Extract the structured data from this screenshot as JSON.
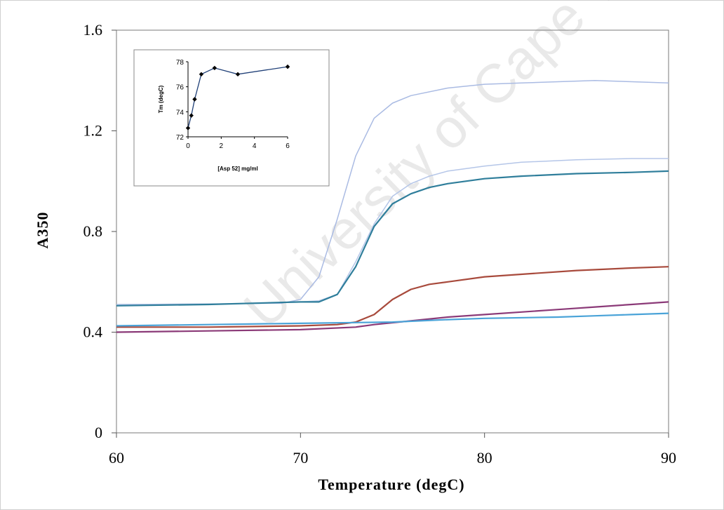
{
  "chart_data": [
    {
      "type": "line",
      "title": "",
      "xlabel": "Temperature (degC)",
      "ylabel": "A350",
      "xlim": [
        60,
        90
      ],
      "ylim": [
        0,
        1.6
      ],
      "xticks": [
        "60",
        "70",
        "80",
        "90"
      ],
      "yticks": [
        "0",
        "0.4",
        "0.8",
        "1.2",
        "1.6"
      ],
      "grid": false,
      "legend": "none",
      "series": [
        {
          "color": "#aabbe3",
          "width": 1.5,
          "points": [
            [
              60,
              0.51
            ],
            [
              65,
              0.512
            ],
            [
              69,
              0.515
            ],
            [
              70,
              0.53
            ],
            [
              71,
              0.62
            ],
            [
              72,
              0.85
            ],
            [
              73,
              1.1
            ],
            [
              74,
              1.25
            ],
            [
              75,
              1.31
            ],
            [
              76,
              1.34
            ],
            [
              78,
              1.37
            ],
            [
              80,
              1.385
            ],
            [
              82,
              1.39
            ],
            [
              84,
              1.395
            ],
            [
              86,
              1.4
            ],
            [
              88,
              1.395
            ],
            [
              90,
              1.39
            ]
          ]
        },
        {
          "color": "#b5c6e8",
          "width": 1.5,
          "points": [
            [
              60,
              0.51
            ],
            [
              65,
              0.51
            ],
            [
              70,
              0.52
            ],
            [
              71,
              0.525
            ],
            [
              72,
              0.55
            ],
            [
              73,
              0.68
            ],
            [
              74,
              0.83
            ],
            [
              75,
              0.94
            ],
            [
              76,
              0.99
            ],
            [
              77,
              1.02
            ],
            [
              78,
              1.04
            ],
            [
              80,
              1.06
            ],
            [
              82,
              1.075
            ],
            [
              85,
              1.085
            ],
            [
              88,
              1.09
            ],
            [
              90,
              1.09
            ]
          ]
        },
        {
          "color": "#2f7e9b",
          "width": 2.2,
          "points": [
            [
              60,
              0.505
            ],
            [
              65,
              0.51
            ],
            [
              70,
              0.52
            ],
            [
              71,
              0.52
            ],
            [
              72,
              0.55
            ],
            [
              73,
              0.66
            ],
            [
              74,
              0.82
            ],
            [
              75,
              0.91
            ],
            [
              76,
              0.95
            ],
            [
              77,
              0.975
            ],
            [
              78,
              0.99
            ],
            [
              80,
              1.01
            ],
            [
              82,
              1.02
            ],
            [
              85,
              1.03
            ],
            [
              88,
              1.035
            ],
            [
              90,
              1.04
            ]
          ]
        },
        {
          "color": "#a84a3c",
          "width": 2.2,
          "points": [
            [
              60,
              0.42
            ],
            [
              65,
              0.42
            ],
            [
              70,
              0.425
            ],
            [
              72,
              0.43
            ],
            [
              73,
              0.44
            ],
            [
              74,
              0.47
            ],
            [
              75,
              0.53
            ],
            [
              76,
              0.57
            ],
            [
              77,
              0.59
            ],
            [
              78,
              0.6
            ],
            [
              80,
              0.62
            ],
            [
              82,
              0.63
            ],
            [
              85,
              0.645
            ],
            [
              88,
              0.655
            ],
            [
              90,
              0.66
            ]
          ]
        },
        {
          "color": "#8b3a78",
          "width": 2.2,
          "points": [
            [
              60,
              0.4
            ],
            [
              65,
              0.405
            ],
            [
              70,
              0.41
            ],
            [
              73,
              0.42
            ],
            [
              74,
              0.43
            ],
            [
              76,
              0.445
            ],
            [
              78,
              0.46
            ],
            [
              80,
              0.47
            ],
            [
              82,
              0.48
            ],
            [
              84,
              0.49
            ],
            [
              86,
              0.5
            ],
            [
              88,
              0.51
            ],
            [
              90,
              0.52
            ]
          ]
        },
        {
          "color": "#4aa3d8",
          "width": 2.2,
          "points": [
            [
              60,
              0.425
            ],
            [
              65,
              0.43
            ],
            [
              70,
              0.435
            ],
            [
              75,
              0.44
            ],
            [
              78,
              0.45
            ],
            [
              80,
              0.455
            ],
            [
              84,
              0.46
            ],
            [
              86,
              0.465
            ],
            [
              88,
              0.47
            ],
            [
              90,
              0.475
            ]
          ]
        }
      ]
    },
    {
      "type": "line",
      "title": "",
      "xlabel": "[Asp 52] mg/ml",
      "ylabel": "Tm (degC)",
      "xlim": [
        0,
        6
      ],
      "ylim": [
        72,
        78
      ],
      "xticks": [
        "0",
        "2",
        "4",
        "6"
      ],
      "yticks": [
        "72",
        "74",
        "76",
        "78"
      ],
      "grid": false,
      "legend": "none",
      "series": [
        {
          "color": "#1f3f77",
          "marker": "diamond",
          "x": [
            0,
            0.2,
            0.4,
            0.8,
            1.6,
            3,
            6
          ],
          "y": [
            72.7,
            73.7,
            75,
            77,
            77.5,
            77,
            77.6
          ]
        }
      ]
    }
  ],
  "watermark": "University of Cape Town"
}
